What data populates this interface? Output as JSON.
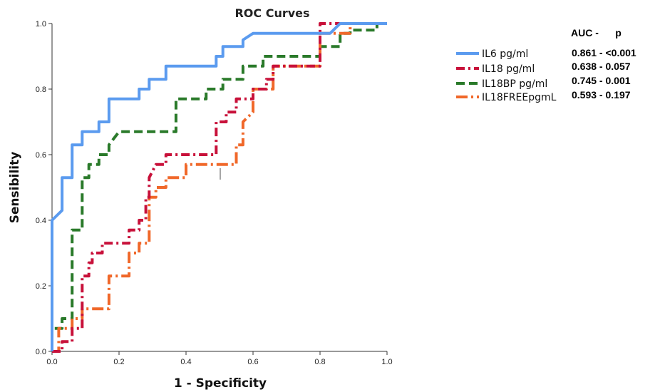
{
  "chart_data": {
    "type": "line",
    "title": "ROC Curves",
    "xlabel": "1 - Specificity",
    "ylabel": "Sensibility",
    "xlim": [
      0,
      1
    ],
    "ylim": [
      0,
      1
    ],
    "x_ticks": [
      "0.0",
      "0.2",
      "0.4",
      "0.6",
      "0.8",
      "1.0"
    ],
    "y_ticks": [
      "0.0",
      "0.2",
      "0.4",
      "0.6",
      "0.8",
      "1.0"
    ],
    "grid": false,
    "legend_position": "right",
    "stats_header": "AUC -      p",
    "series": [
      {
        "name": "IL6 pg/ml",
        "color": "#5b9bef",
        "dash": "solid",
        "stat": "0.861 - <0.001",
        "points": [
          [
            0,
            0
          ],
          [
            0,
            0.4
          ],
          [
            0.03,
            0.43
          ],
          [
            0.03,
            0.53
          ],
          [
            0.06,
            0.53
          ],
          [
            0.06,
            0.63
          ],
          [
            0.09,
            0.63
          ],
          [
            0.09,
            0.67
          ],
          [
            0.14,
            0.67
          ],
          [
            0.14,
            0.7
          ],
          [
            0.17,
            0.7
          ],
          [
            0.17,
            0.77
          ],
          [
            0.26,
            0.77
          ],
          [
            0.26,
            0.8
          ],
          [
            0.29,
            0.8
          ],
          [
            0.29,
            0.83
          ],
          [
            0.34,
            0.83
          ],
          [
            0.34,
            0.87
          ],
          [
            0.49,
            0.87
          ],
          [
            0.49,
            0.9
          ],
          [
            0.51,
            0.9
          ],
          [
            0.51,
            0.93
          ],
          [
            0.57,
            0.93
          ],
          [
            0.57,
            0.95
          ],
          [
            0.6,
            0.97
          ],
          [
            0.83,
            0.97
          ],
          [
            0.86,
            1.0
          ],
          [
            1.0,
            1.0
          ]
        ]
      },
      {
        "name": "IL18 pg/ml",
        "color": "#c8113a",
        "dash": "dashdot",
        "stat": "0.638 - 0.057",
        "points": [
          [
            0,
            0
          ],
          [
            0.03,
            0
          ],
          [
            0.03,
            0.03
          ],
          [
            0.06,
            0.03
          ],
          [
            0.06,
            0.07
          ],
          [
            0.09,
            0.07
          ],
          [
            0.09,
            0.23
          ],
          [
            0.11,
            0.23
          ],
          [
            0.11,
            0.27
          ],
          [
            0.12,
            0.27
          ],
          [
            0.12,
            0.3
          ],
          [
            0.15,
            0.3
          ],
          [
            0.15,
            0.33
          ],
          [
            0.23,
            0.33
          ],
          [
            0.23,
            0.37
          ],
          [
            0.26,
            0.37
          ],
          [
            0.26,
            0.4
          ],
          [
            0.28,
            0.4
          ],
          [
            0.28,
            0.47
          ],
          [
            0.29,
            0.47
          ],
          [
            0.29,
            0.53
          ],
          [
            0.31,
            0.57
          ],
          [
            0.34,
            0.57
          ],
          [
            0.34,
            0.6
          ],
          [
            0.49,
            0.6
          ],
          [
            0.49,
            0.7
          ],
          [
            0.52,
            0.7
          ],
          [
            0.52,
            0.73
          ],
          [
            0.55,
            0.73
          ],
          [
            0.55,
            0.77
          ],
          [
            0.6,
            0.77
          ],
          [
            0.6,
            0.8
          ],
          [
            0.64,
            0.8
          ],
          [
            0.64,
            0.83
          ],
          [
            0.66,
            0.83
          ],
          [
            0.66,
            0.87
          ],
          [
            0.8,
            0.87
          ],
          [
            0.8,
            1.0
          ],
          [
            1.0,
            1.0
          ]
        ]
      },
      {
        "name": "IL18BP pg/ml",
        "color": "#2a7a2a",
        "dash": "dashed",
        "stat": "0.745 - 0.001",
        "points": [
          [
            0,
            0
          ],
          [
            0,
            0.07
          ],
          [
            0.03,
            0.07
          ],
          [
            0.03,
            0.1
          ],
          [
            0.06,
            0.1
          ],
          [
            0.06,
            0.37
          ],
          [
            0.09,
            0.37
          ],
          [
            0.09,
            0.53
          ],
          [
            0.11,
            0.53
          ],
          [
            0.11,
            0.57
          ],
          [
            0.14,
            0.57
          ],
          [
            0.14,
            0.6
          ],
          [
            0.17,
            0.6
          ],
          [
            0.17,
            0.63
          ],
          [
            0.2,
            0.67
          ],
          [
            0.37,
            0.67
          ],
          [
            0.37,
            0.77
          ],
          [
            0.46,
            0.77
          ],
          [
            0.46,
            0.8
          ],
          [
            0.51,
            0.8
          ],
          [
            0.51,
            0.83
          ],
          [
            0.57,
            0.83
          ],
          [
            0.57,
            0.87
          ],
          [
            0.63,
            0.87
          ],
          [
            0.63,
            0.9
          ],
          [
            0.8,
            0.9
          ],
          [
            0.8,
            0.93
          ],
          [
            0.86,
            0.93
          ],
          [
            0.86,
            0.97
          ],
          [
            0.89,
            0.97
          ],
          [
            0.89,
            0.98
          ],
          [
            0.97,
            0.98
          ],
          [
            0.97,
            1.0
          ],
          [
            1.0,
            1.0
          ]
        ]
      },
      {
        "name": "IL18FREEpgmL",
        "color": "#f0682a",
        "dash": "longdashdot",
        "stat": "0.593 - 0.197",
        "points": [
          [
            0,
            0
          ],
          [
            0.02,
            0
          ],
          [
            0.02,
            0.07
          ],
          [
            0.06,
            0.07
          ],
          [
            0.06,
            0.1
          ],
          [
            0.09,
            0.1
          ],
          [
            0.09,
            0.13
          ],
          [
            0.17,
            0.13
          ],
          [
            0.17,
            0.23
          ],
          [
            0.23,
            0.23
          ],
          [
            0.23,
            0.3
          ],
          [
            0.26,
            0.3
          ],
          [
            0.26,
            0.33
          ],
          [
            0.29,
            0.33
          ],
          [
            0.29,
            0.47
          ],
          [
            0.31,
            0.47
          ],
          [
            0.31,
            0.5
          ],
          [
            0.34,
            0.5
          ],
          [
            0.34,
            0.53
          ],
          [
            0.4,
            0.53
          ],
          [
            0.4,
            0.57
          ],
          [
            0.49,
            0.57
          ],
          [
            0.55,
            0.57
          ],
          [
            0.55,
            0.63
          ],
          [
            0.57,
            0.63
          ],
          [
            0.57,
            0.7
          ],
          [
            0.6,
            0.73
          ],
          [
            0.6,
            0.8
          ],
          [
            0.66,
            0.8
          ],
          [
            0.66,
            0.87
          ],
          [
            0.8,
            0.87
          ],
          [
            0.8,
            0.97
          ],
          [
            0.89,
            0.97
          ],
          [
            0.89,
            1.0
          ],
          [
            1.0,
            1.0
          ]
        ]
      }
    ]
  }
}
